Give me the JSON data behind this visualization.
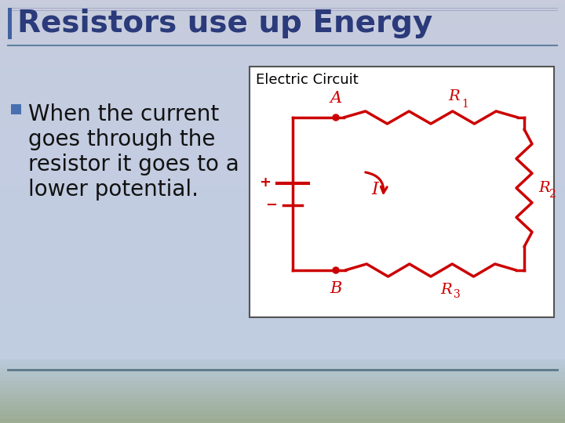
{
  "title": "Resistors use up Energy",
  "bullet_text_lines": [
    "When the current",
    "goes through the",
    "resistor it goes to a",
    "lower potential."
  ],
  "circuit_label": "Electric Circuit",
  "bg_top_color": "#c8ccdc",
  "bg_main_color": "#c0cce0",
  "bg_bottom_color": "#9aaa90",
  "title_color": "#2a3a7a",
  "bullet_color": "#111111",
  "circuit_line_color": "#cc0000",
  "title_fontsize": 28,
  "circuit_label_fontsize": 13,
  "bullet_fontsize": 20,
  "bullet_marker_color": "#4870b0",
  "accent_bar_color": "#4060a0",
  "divider_line_color": "#6080a0",
  "footer_line_color": "#5a7888"
}
